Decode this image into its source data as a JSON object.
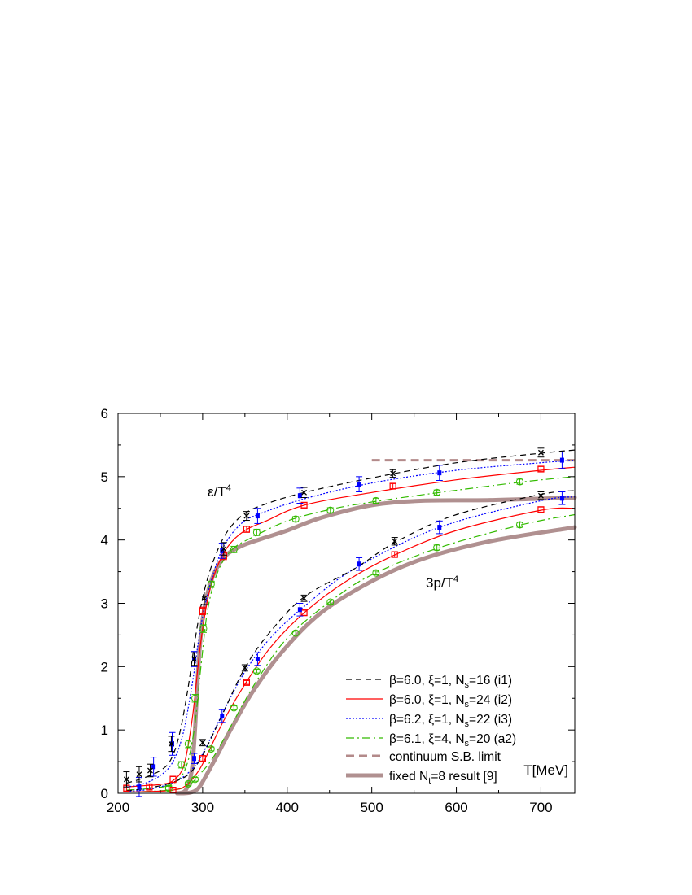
{
  "chart_data": {
    "type": "line",
    "xlabel": "T[MeV]",
    "ylabel": "",
    "xlim": [
      200,
      740
    ],
    "ylim": [
      0,
      6
    ],
    "x_ticks": [
      200,
      300,
      400,
      500,
      600,
      700
    ],
    "y_ticks": [
      0,
      1,
      2,
      3,
      4,
      5,
      6
    ],
    "grid": false,
    "legend_position": "bottom-right",
    "annotations": [
      {
        "id": "eps",
        "text_main": "ε/T",
        "text_sup": "4",
        "x": 255,
        "y": 4.75
      },
      {
        "id": "p",
        "text_main": "3p/T",
        "text_sup": "4",
        "x": 570,
        "y": 3.4
      }
    ],
    "colors": {
      "i1": "#000000",
      "i2": "#ff0000",
      "i3": "#0000ff",
      "a2": "#33bb00",
      "sb": "#b38a8a",
      "nt8": "#b09090"
    },
    "series": [
      {
        "id": "i1",
        "name": "β=6.0, ξ=1, N",
        "name_sub": "s",
        "name_suffix": "=16 (i1)",
        "color": "#000000",
        "dash": "7,5",
        "width": 1.2,
        "marker": "cross",
        "curves": {
          "energy": [
            [
              210,
              0.16
            ],
            [
              230,
              0.24
            ],
            [
              250,
              0.36
            ],
            [
              262,
              0.52
            ],
            [
              272,
              0.9
            ],
            [
              282,
              1.6
            ],
            [
              292,
              2.5
            ],
            [
              302,
              3.2
            ],
            [
              315,
              3.75
            ],
            [
              330,
              4.15
            ],
            [
              350,
              4.42
            ],
            [
              375,
              4.57
            ],
            [
              420,
              4.75
            ],
            [
              500,
              4.98
            ],
            [
              600,
              5.22
            ],
            [
              700,
              5.37
            ],
            [
              740,
              5.42
            ]
          ],
          "pressure": [
            [
              210,
              0.04
            ],
            [
              230,
              0.07
            ],
            [
              250,
              0.12
            ],
            [
              270,
              0.2
            ],
            [
              285,
              0.32
            ],
            [
              300,
              0.6
            ],
            [
              320,
              1.15
            ],
            [
              350,
              1.98
            ],
            [
              380,
              2.55
            ],
            [
              420,
              3.1
            ],
            [
              480,
              3.55
            ],
            [
              530,
              3.98
            ],
            [
              600,
              4.4
            ],
            [
              700,
              4.72
            ],
            [
              740,
              4.78
            ]
          ]
        },
        "points": {
          "energy": [
            [
              210,
              0.22,
              0.12
            ],
            [
              225,
              0.3,
              0.12
            ],
            [
              238,
              0.36,
              0.1
            ],
            [
              263,
              0.78,
              0.12
            ],
            [
              290,
              2.12,
              0.1
            ],
            [
              302,
              3.08,
              0.1
            ],
            [
              325,
              3.86,
              0.1
            ],
            [
              352,
              4.38,
              0.07
            ],
            [
              420,
              4.75,
              0.08
            ],
            [
              525,
              5.05,
              0.06
            ],
            [
              700,
              5.38,
              0.07
            ]
          ],
          "pressure": [
            [
              300,
              0.8,
              0.05
            ],
            [
              350,
              1.98,
              0.05
            ],
            [
              420,
              3.08,
              0.05
            ],
            [
              527,
              3.98,
              0.06
            ],
            [
              700,
              4.7,
              0.06
            ]
          ]
        }
      },
      {
        "id": "i2",
        "name": "β=6.0, ξ=1, N",
        "name_sub": "s",
        "name_suffix": "=24 (i2)",
        "color": "#ff0000",
        "dash": "",
        "width": 1.2,
        "marker": "square",
        "curves": {
          "energy": [
            [
              210,
              0.1
            ],
            [
              230,
              0.12
            ],
            [
              250,
              0.14
            ],
            [
              265,
              0.2
            ],
            [
              278,
              0.45
            ],
            [
              288,
              1.2
            ],
            [
              297,
              2.3
            ],
            [
              305,
              3.0
            ],
            [
              315,
              3.5
            ],
            [
              330,
              3.9
            ],
            [
              350,
              4.15
            ],
            [
              375,
              4.3
            ],
            [
              420,
              4.55
            ],
            [
              500,
              4.75
            ],
            [
              600,
              4.95
            ],
            [
              700,
              5.1
            ],
            [
              740,
              5.15
            ]
          ],
          "pressure": [
            [
              210,
              0.02
            ],
            [
              240,
              0.03
            ],
            [
              265,
              0.05
            ],
            [
              280,
              0.12
            ],
            [
              295,
              0.35
            ],
            [
              305,
              0.6
            ],
            [
              325,
              1.15
            ],
            [
              350,
              1.72
            ],
            [
              380,
              2.3
            ],
            [
              420,
              2.85
            ],
            [
              470,
              3.35
            ],
            [
              525,
              3.75
            ],
            [
              600,
              4.15
            ],
            [
              700,
              4.47
            ],
            [
              740,
              4.5
            ]
          ]
        },
        "points": {
          "energy": [
            [
              210,
              0.08,
              0.05
            ],
            [
              237,
              0.1,
              0.05
            ],
            [
              265,
              0.22,
              0.05
            ],
            [
              300,
              2.88,
              0.06
            ],
            [
              325,
              3.75,
              0.06
            ],
            [
              352,
              4.17,
              0.05
            ],
            [
              420,
              4.55,
              0.04
            ],
            [
              525,
              4.85,
              0.04
            ],
            [
              700,
              5.12,
              0.04
            ]
          ],
          "pressure": [
            [
              265,
              0.05,
              0.03
            ],
            [
              300,
              0.55,
              0.04
            ],
            [
              352,
              1.75,
              0.03
            ],
            [
              420,
              2.85,
              0.04
            ],
            [
              527,
              3.77,
              0.04
            ],
            [
              700,
              4.48,
              0.04
            ]
          ]
        }
      },
      {
        "id": "i3",
        "name": "β=6.2, ξ=1, N",
        "name_sub": "s",
        "name_suffix": "=22 (i3)",
        "color": "#0000ff",
        "dash": "2,2",
        "width": 1.2,
        "marker": "filled",
        "curves": {
          "energy": [
            [
              210,
              0.1
            ],
            [
              230,
              0.15
            ],
            [
              250,
              0.28
            ],
            [
              265,
              0.5
            ],
            [
              277,
              0.95
            ],
            [
              288,
              1.75
            ],
            [
              298,
              2.65
            ],
            [
              310,
              3.35
            ],
            [
              325,
              3.9
            ],
            [
              345,
              4.25
            ],
            [
              365,
              4.4
            ],
            [
              420,
              4.65
            ],
            [
              500,
              4.9
            ],
            [
              600,
              5.1
            ],
            [
              700,
              5.22
            ],
            [
              740,
              5.26
            ]
          ],
          "pressure": [
            [
              210,
              0.03
            ],
            [
              240,
              0.07
            ],
            [
              270,
              0.2
            ],
            [
              290,
              0.42
            ],
            [
              305,
              0.75
            ],
            [
              325,
              1.3
            ],
            [
              350,
              1.92
            ],
            [
              380,
              2.45
            ],
            [
              420,
              2.95
            ],
            [
              480,
              3.55
            ],
            [
              580,
              4.2
            ],
            [
              700,
              4.62
            ],
            [
              740,
              4.68
            ]
          ]
        },
        "points": {
          "energy": [
            [
              225,
              0.1,
              0.15
            ],
            [
              242,
              0.42,
              0.15
            ],
            [
              264,
              0.78,
              0.18
            ],
            [
              290,
              2.12,
              0.12
            ],
            [
              323,
              3.83,
              0.12
            ],
            [
              365,
              4.38,
              0.12
            ],
            [
              415,
              4.7,
              0.12
            ],
            [
              485,
              4.88,
              0.12
            ],
            [
              580,
              5.06,
              0.12
            ],
            [
              725,
              5.26,
              0.13
            ]
          ],
          "pressure": [
            [
              290,
              0.55,
              0.08
            ],
            [
              323,
              1.22,
              0.1
            ],
            [
              365,
              2.12,
              0.1
            ],
            [
              415,
              2.9,
              0.1
            ],
            [
              485,
              3.62,
              0.1
            ],
            [
              580,
              4.2,
              0.1
            ],
            [
              725,
              4.66,
              0.1
            ]
          ]
        }
      },
      {
        "id": "a2",
        "name": "β=6.1, ξ=4, N",
        "name_sub": "s",
        "name_suffix": "=20 (a2)",
        "color": "#33bb00",
        "dash": "10,4,2,4",
        "width": 1.2,
        "marker": "circle",
        "curves": {
          "energy": [
            [
              210,
              0.05
            ],
            [
              240,
              0.08
            ],
            [
              265,
              0.15
            ],
            [
              280,
              0.4
            ],
            [
              290,
              1.0
            ],
            [
              298,
              2.0
            ],
            [
              306,
              2.9
            ],
            [
              318,
              3.5
            ],
            [
              335,
              3.85
            ],
            [
              360,
              4.05
            ],
            [
              400,
              4.3
            ],
            [
              450,
              4.48
            ],
            [
              500,
              4.6
            ],
            [
              580,
              4.75
            ],
            [
              680,
              4.92
            ],
            [
              740,
              5.0
            ]
          ],
          "pressure": [
            [
              210,
              0.02
            ],
            [
              250,
              0.04
            ],
            [
              280,
              0.1
            ],
            [
              300,
              0.35
            ],
            [
              315,
              0.62
            ],
            [
              335,
              1.1
            ],
            [
              365,
              1.8
            ],
            [
              400,
              2.45
            ],
            [
              450,
              3.02
            ],
            [
              500,
              3.45
            ],
            [
              580,
              3.88
            ],
            [
              680,
              4.25
            ],
            [
              740,
              4.4
            ]
          ]
        },
        "points": {
          "energy": [
            [
              260,
              0.08,
              0.04
            ],
            [
              275,
              0.45,
              0.05
            ],
            [
              283,
              0.78,
              0.06
            ],
            [
              291,
              1.5,
              0.06
            ],
            [
              301,
              2.6,
              0.06
            ],
            [
              310,
              3.3,
              0.05
            ],
            [
              337,
              3.85,
              0.05
            ],
            [
              364,
              4.12,
              0.05
            ],
            [
              410,
              4.33,
              0.04
            ],
            [
              451,
              4.47,
              0.04
            ],
            [
              505,
              4.62,
              0.04
            ],
            [
              577,
              4.75,
              0.04
            ],
            [
              675,
              4.92,
              0.04
            ]
          ],
          "pressure": [
            [
              260,
              0.08,
              0.03
            ],
            [
              283,
              0.15,
              0.03
            ],
            [
              291,
              0.22,
              0.03
            ],
            [
              310,
              0.7,
              0.03
            ],
            [
              337,
              1.35,
              0.03
            ],
            [
              364,
              1.93,
              0.03
            ],
            [
              410,
              2.53,
              0.03
            ],
            [
              451,
              3.02,
              0.03
            ],
            [
              505,
              3.48,
              0.03
            ],
            [
              577,
              3.88,
              0.04
            ],
            [
              675,
              4.24,
              0.04
            ]
          ]
        }
      },
      {
        "id": "sb",
        "name": "continuum S.B. limit",
        "color": "#b38a8a",
        "dash": "10,6",
        "width": 3,
        "curves": {
          "limit": [
            [
              500,
              5.26
            ],
            [
              740,
              5.26
            ]
          ]
        }
      },
      {
        "id": "nt8",
        "name": "fixed N",
        "name_sub": "t",
        "name_suffix": "=8 result [9]",
        "color": "#b09090",
        "dash": "",
        "width": 5,
        "curves": {
          "energy": [
            [
              270,
              0.0
            ],
            [
              280,
              0.05
            ],
            [
              287,
              0.35
            ],
            [
              291,
              1.0
            ],
            [
              295,
              2.0
            ],
            [
              300,
              2.75
            ],
            [
              310,
              3.35
            ],
            [
              325,
              3.72
            ],
            [
              345,
              3.9
            ],
            [
              370,
              4.02
            ],
            [
              400,
              4.15
            ],
            [
              440,
              4.35
            ],
            [
              500,
              4.55
            ],
            [
              560,
              4.62
            ],
            [
              640,
              4.63
            ],
            [
              740,
              4.67
            ]
          ],
          "pressure": [
            [
              270,
              0.0
            ],
            [
              285,
              0.01
            ],
            [
              295,
              0.08
            ],
            [
              305,
              0.3
            ],
            [
              318,
              0.62
            ],
            [
              335,
              1.05
            ],
            [
              360,
              1.62
            ],
            [
              395,
              2.25
            ],
            [
              440,
              2.85
            ],
            [
              500,
              3.35
            ],
            [
              560,
              3.7
            ],
            [
              640,
              3.98
            ],
            [
              740,
              4.2
            ]
          ]
        }
      }
    ]
  }
}
